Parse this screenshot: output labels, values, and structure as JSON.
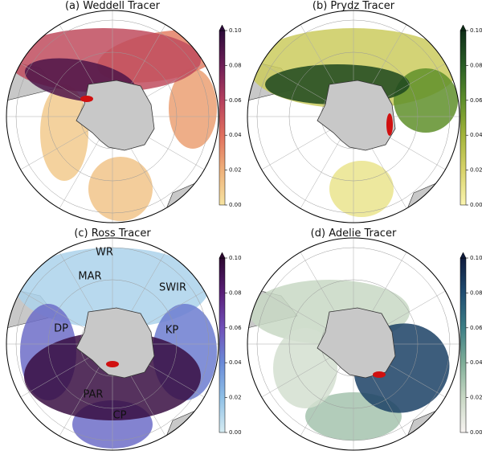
{
  "panels": [
    {
      "title": "(a) Weddell Tracer",
      "colormap": [
        "#f6e3a0",
        "#eeb07a",
        "#e0705e",
        "#b5405e",
        "#6e1f57",
        "#2c0b3a"
      ],
      "clim": [
        0,
        0.1
      ],
      "ticks": [
        {
          "value": 0,
          "label": "0.00"
        },
        {
          "value": 0.02,
          "label": "0.02"
        },
        {
          "value": 0.04,
          "label": "0.04"
        },
        {
          "value": 0.06,
          "label": "0.06"
        },
        {
          "value": 0.08,
          "label": "0.08"
        },
        {
          "value": 0.1,
          "label": "0.10"
        }
      ]
    },
    {
      "title": "(b) Prydz Tracer",
      "colormap": [
        "#fbf5b0",
        "#d8d36a",
        "#a3b43a",
        "#5f8f2a",
        "#2a5e26",
        "#0e2d17"
      ],
      "clim": [
        0,
        0.1
      ],
      "ticks": [
        {
          "value": 0,
          "label": "0.00"
        },
        {
          "value": 0.02,
          "label": "0.02"
        },
        {
          "value": 0.04,
          "label": "0.04"
        },
        {
          "value": 0.06,
          "label": "0.06"
        },
        {
          "value": 0.08,
          "label": "0.08"
        },
        {
          "value": 0.1,
          "label": "0.10"
        }
      ]
    },
    {
      "title": "(c) Ross Tracer",
      "colormap": [
        "#d6ecf2",
        "#8fc0e6",
        "#6a8ad8",
        "#7050b8",
        "#5a1f78",
        "#2d0830"
      ],
      "clim": [
        0,
        0.1
      ],
      "ticks": [
        {
          "value": 0,
          "label": "0.00"
        },
        {
          "value": 0.02,
          "label": "0.02"
        },
        {
          "value": 0.04,
          "label": "0.04"
        },
        {
          "value": 0.06,
          "label": "0.06"
        },
        {
          "value": 0.08,
          "label": "0.08"
        },
        {
          "value": 0.1,
          "label": "0.10"
        }
      ],
      "annotations": [
        "WR",
        "MAR",
        "SWIR",
        "DP",
        "KP",
        "PAR",
        "CP"
      ]
    },
    {
      "title": "(d) Adelie Tracer",
      "colormap": [
        "#f8f4f2",
        "#c8d8c4",
        "#7fae98",
        "#3d7f86",
        "#1f4d72",
        "#0f1c3e"
      ],
      "clim": [
        0,
        0.1
      ],
      "ticks": [
        {
          "value": 0,
          "label": "0.00"
        },
        {
          "value": 0.02,
          "label": "0.02"
        },
        {
          "value": 0.04,
          "label": "0.04"
        },
        {
          "value": 0.06,
          "label": "0.06"
        },
        {
          "value": 0.08,
          "label": "0.08"
        },
        {
          "value": 0.1,
          "label": "0.10"
        }
      ]
    }
  ]
}
